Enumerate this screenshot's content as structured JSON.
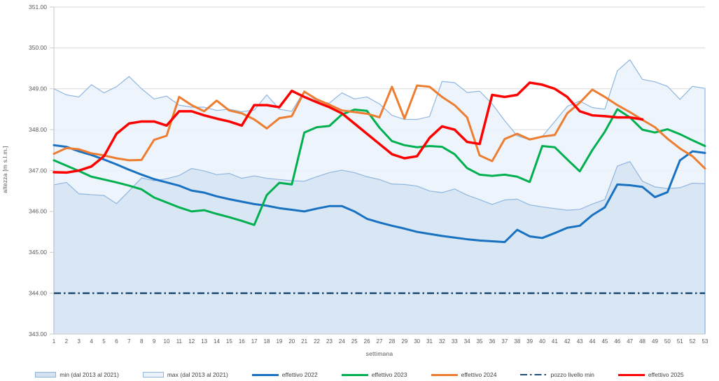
{
  "chart_data": {
    "type": "line",
    "title": "",
    "xlabel": "settimana",
    "ylabel": "altezza [m s.l.m.]",
    "ylim": [
      343,
      351
    ],
    "yticks": [
      "343.00",
      "344.00",
      "345.00",
      "346.00",
      "347.00",
      "348.00",
      "349.00",
      "350.00",
      "351.00"
    ],
    "grid": true,
    "legend_position": "bottom",
    "x": [
      1,
      2,
      3,
      4,
      5,
      6,
      7,
      8,
      9,
      10,
      11,
      12,
      13,
      14,
      15,
      16,
      17,
      18,
      19,
      20,
      21,
      22,
      23,
      24,
      25,
      26,
      27,
      28,
      29,
      30,
      31,
      32,
      33,
      34,
      35,
      36,
      37,
      38,
      39,
      40,
      41,
      42,
      43,
      44,
      45,
      46,
      47,
      48,
      49,
      50,
      51,
      52,
      53
    ],
    "series": [
      {
        "name": "min (dal 2013 al 2021)",
        "kind": "area",
        "stroke": "#8FB6E0",
        "fill": "#D9E6F3",
        "fill_opacity": 1,
        "values": [
          346.65,
          346.71,
          346.43,
          346.41,
          346.39,
          346.19,
          346.5,
          346.82,
          346.75,
          346.8,
          346.88,
          347.05,
          346.99,
          346.9,
          346.93,
          346.81,
          346.87,
          346.81,
          346.78,
          346.75,
          346.74,
          346.85,
          346.95,
          347.01,
          346.95,
          346.85,
          346.78,
          346.67,
          346.66,
          346.62,
          346.5,
          346.46,
          346.55,
          346.4,
          346.29,
          346.17,
          346.28,
          346.3,
          346.16,
          346.11,
          346.07,
          346.03,
          346.05,
          346.18,
          346.29,
          347.11,
          347.22,
          346.74,
          346.6,
          346.56,
          346.58,
          346.69,
          346.68
        ]
      },
      {
        "name": "max (dal 2013 al 2021)",
        "kind": "area",
        "stroke": "#8FB6E0",
        "fill": "#EBF2FA",
        "fill_opacity": 0.85,
        "values": [
          349.0,
          348.85,
          348.8,
          349.1,
          348.9,
          349.05,
          349.3,
          349.0,
          348.75,
          348.82,
          348.6,
          348.55,
          348.55,
          348.47,
          348.5,
          348.44,
          348.48,
          348.85,
          348.5,
          348.45,
          348.95,
          348.7,
          348.65,
          348.9,
          348.75,
          348.8,
          348.63,
          348.35,
          348.25,
          348.25,
          348.32,
          349.18,
          349.15,
          348.91,
          348.94,
          348.63,
          348.22,
          347.85,
          347.75,
          347.83,
          348.2,
          348.57,
          348.7,
          348.54,
          348.5,
          349.44,
          349.71,
          349.23,
          349.17,
          349.06,
          348.74,
          349.06,
          349.01
        ]
      },
      {
        "name": "effettivo 2022",
        "kind": "line",
        "stroke": "#1971C2",
        "width": 3,
        "values": [
          347.62,
          347.58,
          347.47,
          347.38,
          347.27,
          347.15,
          347.02,
          346.9,
          346.79,
          346.71,
          346.63,
          346.51,
          346.46,
          346.37,
          346.3,
          346.24,
          346.18,
          346.14,
          346.08,
          346.04,
          346.0,
          346.07,
          346.13,
          346.13,
          346.0,
          345.82,
          345.73,
          345.65,
          345.58,
          345.5,
          345.45,
          345.4,
          345.36,
          345.32,
          345.29,
          345.27,
          345.25,
          345.55,
          345.39,
          345.35,
          345.47,
          345.6,
          345.65,
          345.91,
          346.1,
          346.66,
          346.64,
          346.6,
          346.35,
          346.47,
          347.25,
          347.47,
          347.43
        ]
      },
      {
        "name": "effettivo 2023",
        "kind": "line",
        "stroke": "#00B050",
        "width": 3,
        "values": [
          347.25,
          347.12,
          346.99,
          346.85,
          346.78,
          346.71,
          346.63,
          346.54,
          346.34,
          346.22,
          346.1,
          346.0,
          346.03,
          345.94,
          345.86,
          345.77,
          345.67,
          346.4,
          346.7,
          346.66,
          347.93,
          348.06,
          348.09,
          348.37,
          348.49,
          348.46,
          348.05,
          347.72,
          347.62,
          347.57,
          347.6,
          347.58,
          347.4,
          347.06,
          346.9,
          346.87,
          346.9,
          346.85,
          346.72,
          347.6,
          347.57,
          347.27,
          346.98,
          347.5,
          347.95,
          348.5,
          348.3,
          348.0,
          347.93,
          348.01,
          347.89,
          347.74,
          347.6
        ]
      },
      {
        "name": "effettivo 2024",
        "kind": "line",
        "stroke": "#ED7D31",
        "width": 3,
        "values": [
          347.41,
          347.55,
          347.52,
          347.42,
          347.37,
          347.3,
          347.25,
          347.26,
          347.75,
          347.85,
          348.8,
          348.6,
          348.45,
          348.71,
          348.47,
          348.4,
          348.25,
          348.03,
          348.28,
          348.33,
          348.93,
          348.74,
          348.61,
          348.47,
          348.43,
          348.39,
          348.3,
          349.05,
          348.27,
          349.08,
          349.05,
          348.8,
          348.6,
          348.3,
          347.37,
          347.23,
          347.77,
          347.9,
          347.76,
          347.83,
          347.87,
          348.4,
          348.66,
          348.98,
          348.8,
          348.6,
          348.43,
          348.24,
          348.06,
          347.78,
          347.54,
          347.35,
          347.05
        ]
      },
      {
        "name": "pozzo livello min",
        "kind": "dashline",
        "stroke": "#1F4E79",
        "width": 2.5,
        "value": 344.0
      },
      {
        "name": "effettivo 2025",
        "kind": "line",
        "stroke": "#FF0000",
        "width": 3.5,
        "values": [
          346.96,
          346.95,
          347.0,
          347.1,
          347.35,
          347.9,
          348.15,
          348.2,
          348.2,
          348.1,
          348.45,
          348.45,
          348.35,
          348.27,
          348.2,
          348.1,
          348.6,
          348.6,
          348.55,
          348.95,
          348.8,
          348.67,
          348.55,
          348.4,
          348.15,
          347.9,
          347.65,
          347.4,
          347.3,
          347.35,
          347.8,
          348.08,
          348.0,
          347.7,
          347.65,
          348.85,
          348.8,
          348.85,
          349.15,
          349.1,
          349.0,
          348.8,
          348.45,
          348.35,
          348.33,
          348.3,
          348.3,
          348.25
        ]
      }
    ]
  },
  "axes_style": {
    "grid_color": "#D9D9D9",
    "axis_color": "#C9C9C9",
    "tick_label_color": "#595959"
  },
  "legend": {
    "items": [
      {
        "label": "min (dal 2013 al 2021)",
        "swatch": "area",
        "stroke": "#8FB6E0",
        "fill": "#D3E2F0"
      },
      {
        "label": "max (dal 2013 al 2021)",
        "swatch": "area",
        "stroke": "#8FB6E0",
        "fill": "#EBF2FA"
      },
      {
        "label": "effettivo 2022",
        "swatch": "line",
        "stroke": "#1971C2"
      },
      {
        "label": "effettivo 2023",
        "swatch": "line",
        "stroke": "#00B050"
      },
      {
        "label": "effettivo 2024",
        "swatch": "line",
        "stroke": "#ED7D31"
      },
      {
        "label": "pozzo livello min",
        "swatch": "dashline",
        "stroke": "#1F4E79"
      },
      {
        "label": "effettivo 2025",
        "swatch": "line",
        "stroke": "#FF0000"
      }
    ]
  }
}
